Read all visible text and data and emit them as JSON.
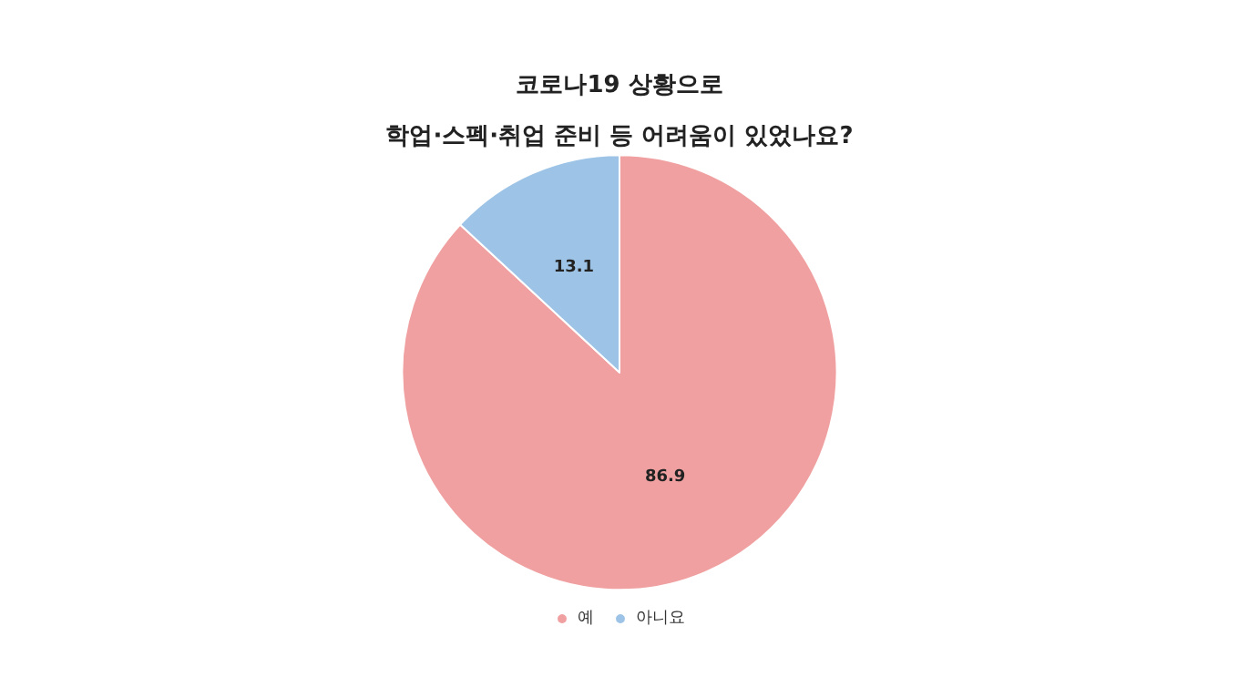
{
  "chart_data": {
    "type": "pie",
    "title": "코로나19 상황으로\n학업·스펙·취업 준비 등 어려움이 있었나요?",
    "categories": [
      "예",
      "아니요"
    ],
    "values": [
      86.9,
      13.1
    ],
    "colors": [
      "#f0a0a0",
      "#9dc3e6"
    ],
    "data_labels": true,
    "legend": "bottom"
  }
}
